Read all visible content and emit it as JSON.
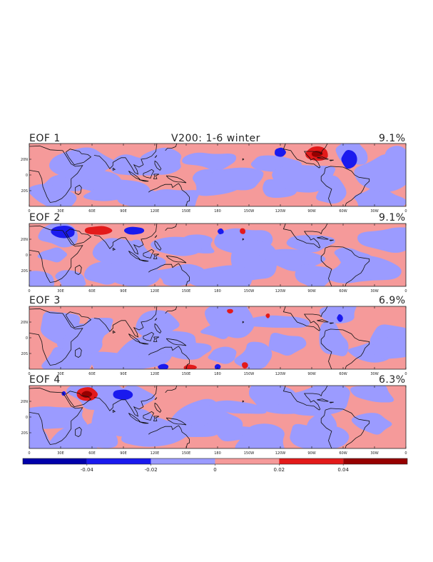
{
  "chart_data": {
    "type": "heatmap",
    "title": "V200: 1-6 winter",
    "colors": {
      "strong_negative": "#0000aa",
      "negative": "#1a1aee",
      "weak_negative": "#9b9bff",
      "weak_positive": "#f59a9a",
      "positive": "#e31a1a",
      "strong_positive": "#960000"
    },
    "x_ticks": [
      "0",
      "30E",
      "60E",
      "90E",
      "120E",
      "150E",
      "180",
      "150W",
      "120W",
      "90W",
      "60W",
      "30W",
      "0"
    ],
    "y_ticks": [
      "20N",
      "0",
      "20S"
    ],
    "colorbar": {
      "ticks": [
        "-0.04",
        "-0.02",
        "0",
        "0.02",
        "0.04"
      ],
      "range": [
        -0.06,
        0.06
      ]
    },
    "panels": [
      {
        "label": "EOF 1",
        "variance": "9.1%",
        "features": [
          {
            "type": "neg",
            "lon": 240,
            "lat": 29,
            "r_lon": 6,
            "r_lat": 6
          },
          {
            "type": "pos",
            "lon": 275,
            "lat": 27,
            "r_lon": 12,
            "r_lat": 9,
            "core": true
          },
          {
            "type": "neg",
            "lon": 306,
            "lat": 20,
            "r_lon": 8,
            "r_lat": 12
          }
        ]
      },
      {
        "label": "EOF 2",
        "variance": "9.1%",
        "features": [
          {
            "type": "neg",
            "lon": 32,
            "lat": 29,
            "r_lon": 12,
            "r_lat": 8
          },
          {
            "type": "pos",
            "lon": 66,
            "lat": 31,
            "r_lon": 13,
            "r_lat": 6
          },
          {
            "type": "neg",
            "lon": 100,
            "lat": 31,
            "r_lon": 10,
            "r_lat": 5
          },
          {
            "type": "neg",
            "lon": 183,
            "lat": 30,
            "r_lon": 3,
            "r_lat": 4
          },
          {
            "type": "pos",
            "lon": 204,
            "lat": 30,
            "r_lon": 3,
            "r_lat": 4
          }
        ]
      },
      {
        "label": "EOF 3",
        "variance": "6.9%",
        "features": [
          {
            "type": "pos",
            "lon": 192,
            "lat": 34,
            "r_lon": 3,
            "r_lat": 3
          },
          {
            "type": "pos",
            "lon": 228,
            "lat": 28,
            "r_lon": 2,
            "r_lat": 3
          },
          {
            "type": "neg",
            "lon": 297,
            "lat": 25,
            "r_lon": 3,
            "r_lat": 5
          },
          {
            "type": "neg",
            "lon": 128,
            "lat": -37,
            "r_lon": 5,
            "r_lat": 4
          },
          {
            "type": "pos",
            "lon": 154,
            "lat": -38,
            "r_lon": 6,
            "r_lat": 4
          },
          {
            "type": "neg",
            "lon": 180,
            "lat": -37,
            "r_lon": 3,
            "r_lat": 4
          },
          {
            "type": "pos",
            "lon": 206,
            "lat": -35,
            "r_lon": 3,
            "r_lat": 4
          }
        ]
      },
      {
        "label": "EOF 4",
        "variance": "6.3%",
        "features": [
          {
            "type": "neg",
            "lon": 33,
            "lat": 30,
            "r_lon": 2,
            "r_lat": 3
          },
          {
            "type": "pos",
            "lon": 55,
            "lat": 29,
            "r_lon": 11,
            "r_lat": 9,
            "core": true
          },
          {
            "type": "neg",
            "lon": 90,
            "lat": 29,
            "r_lon": 10,
            "r_lat": 7
          }
        ]
      }
    ]
  }
}
